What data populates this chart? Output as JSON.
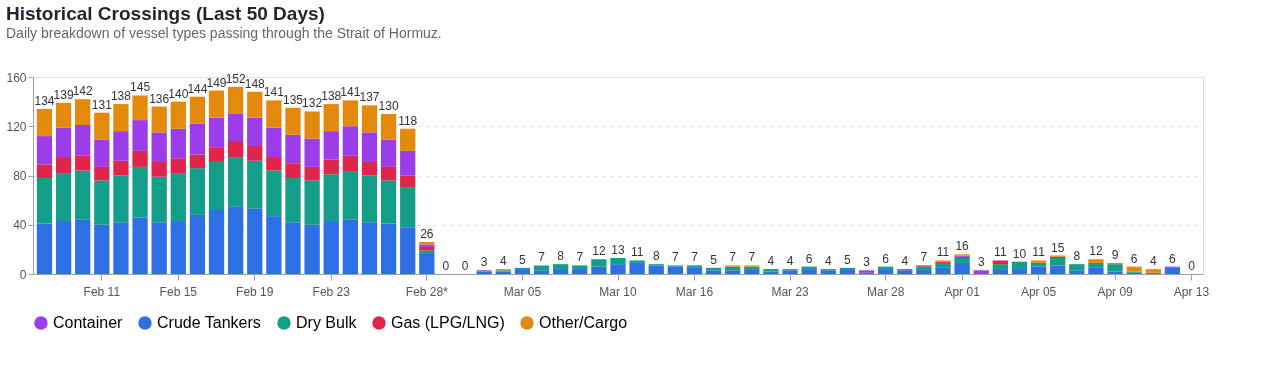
{
  "chart_data": {
    "type": "bar",
    "title": "Historical Crossings (Last 50 Days)",
    "subtitle": "Daily breakdown of vessel types passing through the Strait of Hormuz.",
    "categories": [
      null,
      null,
      null,
      "Feb 11",
      null,
      null,
      null,
      "Feb 15",
      null,
      null,
      null,
      "Feb 19",
      null,
      null,
      null,
      "Feb 23",
      null,
      null,
      null,
      null,
      "Feb 28*",
      null,
      null,
      null,
      null,
      "Mar 05",
      null,
      null,
      null,
      null,
      "Mar 10",
      null,
      null,
      null,
      "Mar 16",
      null,
      null,
      null,
      null,
      "Mar 23",
      null,
      null,
      null,
      null,
      "Mar 28",
      null,
      null,
      null,
      "Apr 01",
      null,
      null,
      null,
      "Apr 05",
      null,
      null,
      null,
      "Apr 09",
      null,
      null,
      null,
      "Apr 13"
    ],
    "stacked": true,
    "series": [
      {
        "name": "Crude Tankers",
        "color": "#2f6fe6",
        "values": [
          41,
          43,
          44,
          40,
          42,
          46,
          42,
          43,
          48,
          52,
          55,
          53,
          47,
          42,
          40,
          43,
          44,
          42,
          41,
          38,
          17,
          0,
          0,
          2,
          2,
          4,
          3,
          4,
          4,
          6,
          8,
          9,
          7,
          6,
          5,
          3,
          3,
          4,
          2,
          3,
          4,
          3,
          4,
          1,
          4,
          3,
          4,
          5,
          9,
          0,
          4,
          4,
          6,
          7,
          3,
          5,
          2,
          1,
          0,
          5,
          0
        ]
      },
      {
        "name": "Dry Bulk",
        "color": "#139e8a",
        "values": [
          37,
          39,
          40,
          36,
          38,
          41,
          37,
          39,
          38,
          39,
          40,
          39,
          37,
          36,
          36,
          38,
          39,
          38,
          35,
          32,
          2,
          0,
          0,
          0,
          1,
          1,
          4,
          4,
          3,
          6,
          5,
          2,
          1,
          1,
          2,
          2,
          3,
          2,
          2,
          1,
          2,
          1,
          1,
          0,
          2,
          0,
          2,
          4,
          4,
          0,
          4,
          6,
          3,
          6,
          5,
          4,
          6,
          1,
          1,
          0,
          0
        ]
      },
      {
        "name": "Gas (LPG/LNG)",
        "color": "#e0254a",
        "values": [
          11,
          13,
          12,
          11,
          12,
          13,
          12,
          12,
          11,
          12,
          13,
          12,
          11,
          12,
          11,
          12,
          13,
          11,
          11,
          10,
          3,
          0,
          0,
          0,
          0,
          0,
          0,
          0,
          0,
          0,
          0,
          0,
          0,
          0,
          0,
          0,
          0,
          0,
          0,
          0,
          0,
          0,
          0,
          0,
          0,
          0,
          1,
          1,
          1,
          0,
          3,
          0,
          0,
          1,
          0,
          0,
          0,
          0,
          0,
          0,
          0
        ]
      },
      {
        "name": "Container",
        "color": "#9b3de8",
        "values": [
          23,
          24,
          25,
          22,
          24,
          25,
          24,
          24,
          25,
          24,
          22,
          23,
          24,
          23,
          23,
          23,
          24,
          24,
          22,
          20,
          2,
          0,
          0,
          1,
          0,
          0,
          0,
          0,
          0,
          0,
          0,
          0,
          0,
          0,
          0,
          0,
          0,
          0,
          0,
          0,
          0,
          0,
          0,
          2,
          0,
          1,
          0,
          0,
          1,
          3,
          0,
          0,
          0,
          0,
          0,
          0,
          0,
          0,
          0,
          1,
          0
        ]
      },
      {
        "name": "Other/Cargo",
        "color": "#e38a0c",
        "values": [
          22,
          20,
          21,
          22,
          22,
          20,
          21,
          22,
          22,
          22,
          22,
          21,
          22,
          22,
          22,
          22,
          21,
          22,
          21,
          18,
          2,
          0,
          0,
          0,
          1,
          0,
          0,
          0,
          0,
          0,
          0,
          0,
          0,
          0,
          0,
          0,
          1,
          1,
          0,
          0,
          0,
          0,
          0,
          0,
          0,
          0,
          0,
          1,
          1,
          0,
          0,
          0,
          2,
          1,
          0,
          3,
          1,
          4,
          3,
          0,
          0
        ]
      }
    ],
    "totals": [
      "134",
      "139",
      "142",
      "131",
      "138",
      "145",
      "136",
      "140",
      "144",
      "149",
      "152",
      "148",
      "141",
      "135",
      "132",
      "138",
      "141",
      "137",
      "130",
      "118",
      "26",
      "0",
      "0",
      "3",
      "4",
      "5",
      "7",
      "8",
      "7",
      "12",
      "13",
      "11",
      "8",
      "7",
      "7",
      "5",
      "7",
      "7",
      "4",
      "4",
      "6",
      "4",
      "5",
      "3",
      "6",
      "4",
      "7",
      "11",
      "16",
      "3",
      "11",
      "10",
      "11",
      "15",
      "8",
      "12",
      "9",
      "6",
      "4",
      "6",
      "0"
    ],
    "ylim": [
      0,
      160
    ],
    "yticks": [
      0,
      40,
      80,
      120,
      160
    ],
    "grid": "y",
    "legend": "bottom"
  }
}
